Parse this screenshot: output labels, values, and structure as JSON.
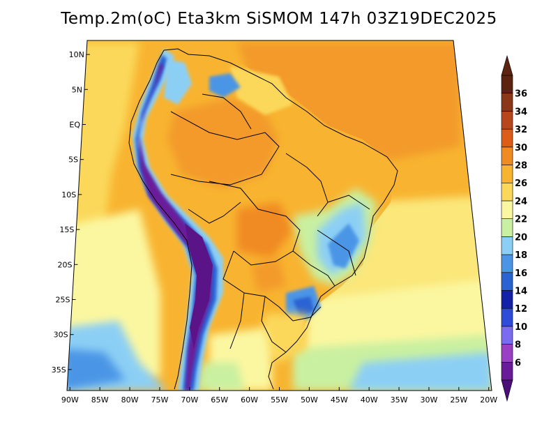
{
  "title": "Temp.2m(oC) Eta3km SiSMOM 147h 03Z19DEC2025",
  "map": {
    "lat_labels": [
      "10N",
      "5N",
      "EQ",
      "5S",
      "10S",
      "15S",
      "20S",
      "25S",
      "30S",
      "35S"
    ],
    "lat_values": [
      10,
      5,
      0,
      -5,
      -10,
      -15,
      -20,
      -25,
      -30,
      -35
    ],
    "lon_labels": [
      "90W",
      "85W",
      "80W",
      "75W",
      "70W",
      "65W",
      "60W",
      "55W",
      "50W",
      "45W",
      "40W",
      "35W",
      "30W",
      "25W",
      "20W"
    ],
    "lon_values": [
      -90,
      -85,
      -80,
      -75,
      -70,
      -65,
      -60,
      -55,
      -50,
      -45,
      -40,
      -35,
      -30,
      -25,
      -20
    ],
    "lon_range": [
      -90.5,
      -19.5
    ],
    "lat_range": [
      -38,
      12
    ]
  },
  "colorbar": {
    "labels": [
      "6",
      "8",
      "10",
      "12",
      "14",
      "16",
      "18",
      "20",
      "22",
      "24",
      "26",
      "28",
      "30",
      "32",
      "34",
      "36"
    ],
    "colors": [
      "#6a1b9a",
      "#9b3fc4",
      "#7a6bf0",
      "#2f4cd9",
      "#1422a8",
      "#2a64d2",
      "#4b95e6",
      "#8ccff5",
      "#c9f0a0",
      "#fbf7a0",
      "#fbd85a",
      "#f8b430",
      "#f08a22",
      "#dc5c18",
      "#b8461c",
      "#8a3818",
      "#5c2410"
    ],
    "under_color": "#4b0f7a",
    "over_color": "#5c2410"
  }
}
